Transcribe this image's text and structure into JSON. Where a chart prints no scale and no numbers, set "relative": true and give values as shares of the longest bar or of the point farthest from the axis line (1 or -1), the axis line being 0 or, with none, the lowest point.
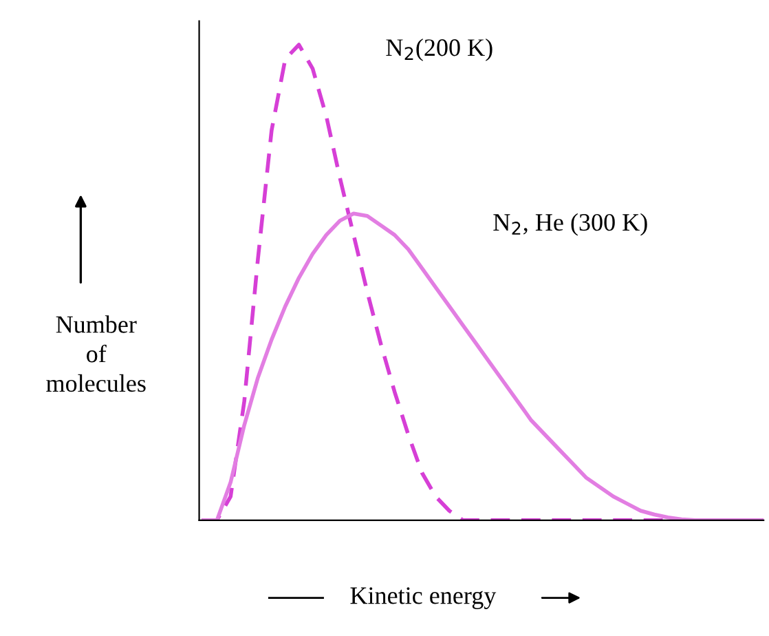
{
  "chart_data": {
    "type": "line",
    "relative": true,
    "xlabel": "Kinetic energy",
    "ylabel": "Number\nof\nmolecules",
    "categories": [
      null,
      null,
      null,
      null,
      null,
      null,
      null,
      null,
      null,
      null,
      null,
      null,
      null,
      null,
      null,
      null,
      null,
      null,
      null,
      null,
      null,
      null,
      null,
      null,
      null,
      null,
      null,
      null,
      null,
      null,
      null,
      null,
      null,
      null,
      null,
      null,
      null,
      null,
      null,
      null,
      null,
      null
    ],
    "series": [
      {
        "color": "#d63fd6",
        "line_style": "dashed",
        "values": [
          0,
          0,
          0.05,
          0.25,
          0.55,
          0.82,
          0.97,
          1.0,
          0.95,
          0.85,
          0.72,
          0.6,
          0.48,
          0.37,
          0.27,
          0.18,
          0.1,
          0.05,
          0.02,
          0,
          0,
          0,
          0,
          0,
          0,
          0,
          0,
          0,
          0,
          0,
          0,
          0,
          0,
          0,
          0,
          0,
          0,
          0,
          0,
          0,
          0,
          0
        ]
      },
      {
        "color": "#e27ee2",
        "line_style": "solid",
        "values": [
          0,
          0,
          0.08,
          0.2,
          0.3,
          0.38,
          0.45,
          0.51,
          0.56,
          0.6,
          0.63,
          0.645,
          0.64,
          0.62,
          0.6,
          0.57,
          0.53,
          0.49,
          0.45,
          0.41,
          0.37,
          0.33,
          0.29,
          0.25,
          0.21,
          0.18,
          0.15,
          0.12,
          0.09,
          0.07,
          0.05,
          0.035,
          0.02,
          0.012,
          0.006,
          0.002,
          0,
          0,
          0,
          0,
          0,
          0
        ]
      }
    ],
    "annotations": [
      "N$_{2}$(200 K)",
      "N$_{2}$, He (300 K)"
    ],
    "grid": false
  }
}
